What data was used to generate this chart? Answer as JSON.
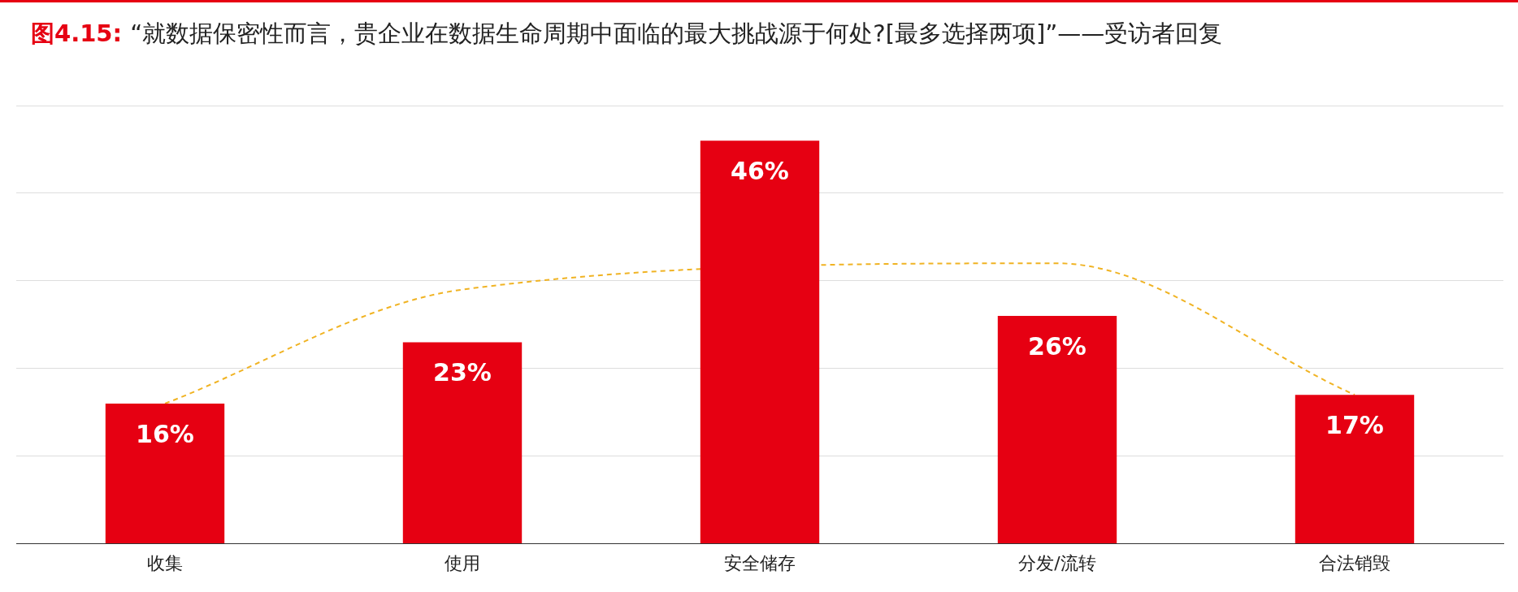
{
  "chart_data": {
    "type": "bar",
    "title": "图4.15: “就数据保密性而言，贵企业在数据生命周期中面临的最大挑战源于何处?[最多选择两项]”——受访者回复",
    "categories": [
      "收集",
      "使用",
      "安全储存",
      "分发/流转",
      "合法销毁"
    ],
    "series": [
      {
        "color": "#e60012",
        "values": [
          16,
          23,
          46,
          26,
          17
        ],
        "value_labels": [
          "16%",
          "23%",
          "46%",
          "26%",
          "17%"
        ]
      },
      {
        "type": "line",
        "color": "#f0b323",
        "values": [
          16,
          29,
          null,
          32,
          17
        ],
        "line_style": "dashed",
        "marker": "none"
      }
    ],
    "grid": "y",
    "tick_labels": "x",
    "legend": false
  }
}
